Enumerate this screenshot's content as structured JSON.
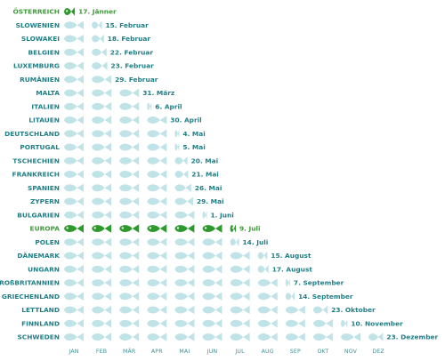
{
  "chart_data": {
    "type": "bar",
    "title": "",
    "xlabel": "",
    "ylabel": "",
    "months": [
      "JAN",
      "FEB",
      "MÄR",
      "APR",
      "MAI",
      "JUN",
      "JUL",
      "AUG",
      "SEP",
      "OKT",
      "NOV",
      "DEZ"
    ],
    "rows": [
      {
        "country": "ÖSTERREICH",
        "date_label": "17. Jänner",
        "day_of_year": 17,
        "highlight": true
      },
      {
        "country": "SLOWENIEN",
        "date_label": "15. Februar",
        "day_of_year": 46,
        "highlight": false
      },
      {
        "country": "SLOWAKEI",
        "date_label": "18. Februar",
        "day_of_year": 49,
        "highlight": false
      },
      {
        "country": "BELGIEN",
        "date_label": "22. Februar",
        "day_of_year": 53,
        "highlight": false
      },
      {
        "country": "LUXEMBURG",
        "date_label": "23. Februar",
        "day_of_year": 54,
        "highlight": false
      },
      {
        "country": "RUMÄNIEN",
        "date_label": "29. Februar",
        "day_of_year": 60,
        "highlight": false
      },
      {
        "country": "MALTA",
        "date_label": "31. März",
        "day_of_year": 91,
        "highlight": false
      },
      {
        "country": "ITALIEN",
        "date_label": "6. April",
        "day_of_year": 97,
        "highlight": false
      },
      {
        "country": "LITAUEN",
        "date_label": "30. April",
        "day_of_year": 121,
        "highlight": false
      },
      {
        "country": "DEUTSCHLAND",
        "date_label": "4. Mai",
        "day_of_year": 125,
        "highlight": false
      },
      {
        "country": "PORTUGAL",
        "date_label": "5. Mai",
        "day_of_year": 126,
        "highlight": false
      },
      {
        "country": "TSCHECHIEN",
        "date_label": "20. Mai",
        "day_of_year": 141,
        "highlight": false
      },
      {
        "country": "FRANKREICH",
        "date_label": "21. Mai",
        "day_of_year": 142,
        "highlight": false
      },
      {
        "country": "SPANIEN",
        "date_label": "26. Mai",
        "day_of_year": 147,
        "highlight": false
      },
      {
        "country": "ZYPERN",
        "date_label": "29. Mai",
        "day_of_year": 150,
        "highlight": false
      },
      {
        "country": "BULGARIEN",
        "date_label": "1. Juni",
        "day_of_year": 153,
        "highlight": false
      },
      {
        "country": "EUROPA",
        "date_label": "9. Juli",
        "day_of_year": 191,
        "highlight": true
      },
      {
        "country": "POLEN",
        "date_label": "14. Juli",
        "day_of_year": 196,
        "highlight": false
      },
      {
        "country": "DÄNEMARK",
        "date_label": "15. August",
        "day_of_year": 228,
        "highlight": false
      },
      {
        "country": "UNGARN",
        "date_label": "17. August",
        "day_of_year": 230,
        "highlight": false
      },
      {
        "country": "GROßBRITANNIEN",
        "date_label": "7. September",
        "day_of_year": 251,
        "highlight": false
      },
      {
        "country": "GRIECHENLAND",
        "date_label": "14. September",
        "day_of_year": 258,
        "highlight": false
      },
      {
        "country": "LETTLAND",
        "date_label": "23. Oktober",
        "day_of_year": 297,
        "highlight": false
      },
      {
        "country": "FINNLAND",
        "date_label": "10. November",
        "day_of_year": 315,
        "highlight": false
      },
      {
        "country": "SCHWEDEN",
        "date_label": "23. Dezember",
        "day_of_year": 358,
        "highlight": false
      }
    ],
    "colors": {
      "fish_default": "#bfe3e7",
      "fish_highlight": "#2e9a2e",
      "label_default": "#1f7f86",
      "label_highlight": "#3e9a3a",
      "month_text": "#3f8f96"
    }
  }
}
